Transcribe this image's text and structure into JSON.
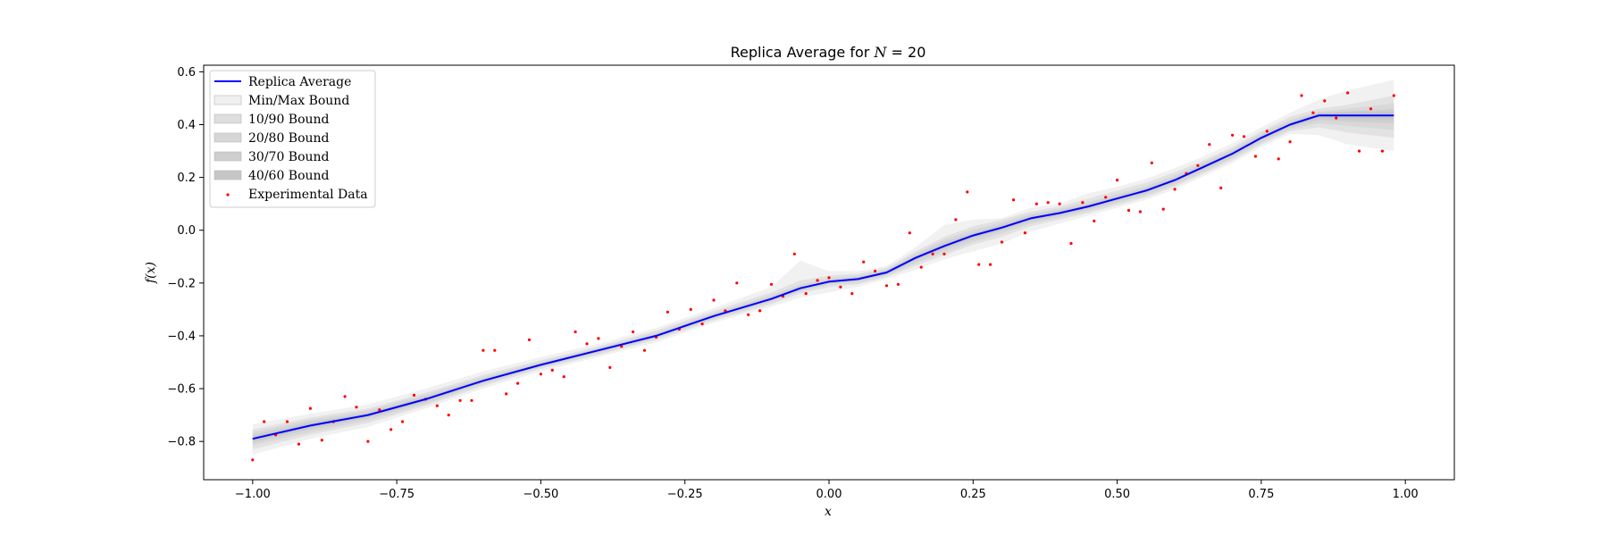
{
  "chart_data": {
    "type": "line",
    "title_prefix": "Replica Average for ",
    "title_var": "N",
    "title_suffix": " = 20",
    "xlabel": "x",
    "ylabel": "f(x)",
    "xlim": [
      -1.085,
      1.085
    ],
    "ylim": [
      -0.945,
      0.625
    ],
    "xticks": [
      -1.0,
      -0.75,
      -0.5,
      -0.25,
      0.0,
      0.25,
      0.5,
      0.75,
      1.0
    ],
    "xtick_labels": [
      "−1.00",
      "−0.75",
      "−0.50",
      "−0.25",
      "0.00",
      "0.25",
      "0.50",
      "0.75",
      "1.00"
    ],
    "yticks": [
      -0.8,
      -0.6,
      -0.4,
      -0.2,
      0.0,
      0.2,
      0.4,
      0.6
    ],
    "ytick_labels": [
      "−0.8",
      "−0.6",
      "−0.4",
      "−0.2",
      "0.0",
      "0.2",
      "0.4",
      "0.6"
    ],
    "grid": false,
    "legend_position": "upper-left",
    "legend": [
      {
        "label": "Replica Average",
        "kind": "line",
        "color": "#0000ff"
      },
      {
        "label": "Min/Max Bound",
        "kind": "band",
        "color": "#f0f0f0"
      },
      {
        "label": "10/90 Bound",
        "kind": "band",
        "color": "#dedede"
      },
      {
        "label": "20/80 Bound",
        "kind": "band",
        "color": "#d6d6d6"
      },
      {
        "label": "30/70 Bound",
        "kind": "band",
        "color": "#cecece"
      },
      {
        "label": "40/60 Bound",
        "kind": "band",
        "color": "#c6c6c6"
      },
      {
        "label": "Experimental Data",
        "kind": "points",
        "color": "#ff0000"
      }
    ],
    "series": [
      {
        "name": "Replica Average",
        "color": "#0000ff",
        "x": [
          -1.0,
          -0.9,
          -0.8,
          -0.7,
          -0.6,
          -0.5,
          -0.4,
          -0.3,
          -0.2,
          -0.1,
          -0.05,
          0.0,
          0.05,
          0.1,
          0.15,
          0.2,
          0.25,
          0.3,
          0.35,
          0.4,
          0.45,
          0.5,
          0.55,
          0.6,
          0.65,
          0.7,
          0.75,
          0.8,
          0.85,
          0.9,
          0.98
        ],
        "y": [
          -0.79,
          -0.74,
          -0.7,
          -0.64,
          -0.57,
          -0.51,
          -0.455,
          -0.4,
          -0.325,
          -0.26,
          -0.22,
          -0.195,
          -0.185,
          -0.16,
          -0.105,
          -0.06,
          -0.02,
          0.01,
          0.045,
          0.065,
          0.09,
          0.12,
          0.15,
          0.19,
          0.24,
          0.29,
          0.35,
          0.4,
          0.435,
          0.435,
          0.435
        ]
      },
      {
        "name": "Experimental Data",
        "color": "#ff0000",
        "x": [
          -1.0,
          -0.98,
          -0.96,
          -0.94,
          -0.92,
          -0.9,
          -0.88,
          -0.86,
          -0.84,
          -0.82,
          -0.8,
          -0.78,
          -0.76,
          -0.74,
          -0.72,
          -0.7,
          -0.68,
          -0.66,
          -0.64,
          -0.62,
          -0.6,
          -0.58,
          -0.56,
          -0.54,
          -0.52,
          -0.5,
          -0.48,
          -0.46,
          -0.44,
          -0.42,
          -0.4,
          -0.38,
          -0.36,
          -0.34,
          -0.32,
          -0.3,
          -0.28,
          -0.26,
          -0.24,
          -0.22,
          -0.2,
          -0.18,
          -0.16,
          -0.14,
          -0.12,
          -0.1,
          -0.08,
          -0.06,
          -0.04,
          -0.02,
          0.0,
          0.02,
          0.04,
          0.06,
          0.08,
          0.1,
          0.12,
          0.14,
          0.16,
          0.18,
          0.2,
          0.22,
          0.24,
          0.26,
          0.28,
          0.3,
          0.32,
          0.34,
          0.36,
          0.38,
          0.4,
          0.42,
          0.44,
          0.46,
          0.48,
          0.5,
          0.52,
          0.54,
          0.56,
          0.58,
          0.6,
          0.62,
          0.64,
          0.66,
          0.68,
          0.7,
          0.72,
          0.74,
          0.76,
          0.78,
          0.8,
          0.82,
          0.84,
          0.86,
          0.88,
          0.9,
          0.92,
          0.94,
          0.96,
          0.98
        ],
        "y": [
          -0.87,
          -0.725,
          -0.775,
          -0.725,
          -0.81,
          -0.675,
          -0.795,
          -0.725,
          -0.63,
          -0.67,
          -0.8,
          -0.68,
          -0.755,
          -0.725,
          -0.625,
          -0.64,
          -0.665,
          -0.7,
          -0.645,
          -0.645,
          -0.455,
          -0.455,
          -0.62,
          -0.58,
          -0.415,
          -0.545,
          -0.53,
          -0.555,
          -0.385,
          -0.43,
          -0.41,
          -0.52,
          -0.44,
          -0.385,
          -0.455,
          -0.405,
          -0.31,
          -0.375,
          -0.3,
          -0.355,
          -0.265,
          -0.305,
          -0.2,
          -0.32,
          -0.305,
          -0.205,
          -0.25,
          -0.09,
          -0.24,
          -0.19,
          -0.18,
          -0.215,
          -0.24,
          -0.12,
          -0.155,
          -0.21,
          -0.205,
          -0.01,
          -0.14,
          -0.09,
          -0.09,
          0.04,
          0.145,
          -0.13,
          -0.13,
          -0.045,
          0.115,
          -0.01,
          0.1,
          0.105,
          0.1,
          -0.05,
          0.105,
          0.035,
          0.125,
          0.19,
          0.075,
          0.07,
          0.255,
          0.08,
          0.155,
          0.215,
          0.245,
          0.325,
          0.16,
          0.36,
          0.355,
          0.28,
          0.375,
          0.27,
          0.335,
          0.51,
          0.445,
          0.49,
          0.425,
          0.52,
          0.3,
          0.46,
          0.3,
          0.51
        ]
      }
    ],
    "bands": [
      {
        "name": "Min/Max Bound",
        "color": "#eeeeee",
        "opacity": 0.85,
        "x": [
          -1.0,
          -0.9,
          -0.8,
          -0.7,
          -0.6,
          -0.5,
          -0.4,
          -0.3,
          -0.2,
          -0.1,
          -0.05,
          0.0,
          0.05,
          0.1,
          0.15,
          0.2,
          0.25,
          0.3,
          0.35,
          0.4,
          0.45,
          0.5,
          0.55,
          0.6,
          0.65,
          0.7,
          0.75,
          0.8,
          0.85,
          0.9,
          0.98
        ],
        "lower": [
          -0.85,
          -0.79,
          -0.745,
          -0.675,
          -0.6,
          -0.535,
          -0.48,
          -0.425,
          -0.35,
          -0.29,
          -0.255,
          -0.235,
          -0.215,
          -0.185,
          -0.15,
          -0.11,
          -0.08,
          -0.05,
          -0.005,
          0.025,
          0.055,
          0.085,
          0.115,
          0.155,
          0.205,
          0.255,
          0.315,
          0.365,
          0.36,
          0.325,
          0.3
        ],
        "upper": [
          -0.735,
          -0.695,
          -0.66,
          -0.6,
          -0.535,
          -0.48,
          -0.43,
          -0.37,
          -0.295,
          -0.215,
          -0.115,
          -0.155,
          -0.155,
          -0.135,
          -0.065,
          0.02,
          0.04,
          0.045,
          0.085,
          0.1,
          0.14,
          0.165,
          0.195,
          0.235,
          0.28,
          0.33,
          0.39,
          0.445,
          0.495,
          0.53,
          0.57
        ]
      },
      {
        "name": "10/90 Bound",
        "color": "#dcdcdc",
        "opacity": 0.75,
        "x": [
          -1.0,
          -0.9,
          -0.8,
          -0.7,
          -0.6,
          -0.5,
          -0.4,
          -0.3,
          -0.2,
          -0.1,
          -0.05,
          0.0,
          0.05,
          0.1,
          0.15,
          0.2,
          0.25,
          0.3,
          0.35,
          0.4,
          0.45,
          0.5,
          0.55,
          0.6,
          0.65,
          0.7,
          0.75,
          0.8,
          0.85,
          0.9,
          0.98
        ],
        "lower": [
          -0.83,
          -0.775,
          -0.73,
          -0.665,
          -0.59,
          -0.525,
          -0.472,
          -0.415,
          -0.342,
          -0.28,
          -0.24,
          -0.215,
          -0.205,
          -0.178,
          -0.135,
          -0.095,
          -0.055,
          -0.025,
          0.015,
          0.04,
          0.065,
          0.095,
          0.125,
          0.165,
          0.215,
          0.265,
          0.325,
          0.375,
          0.39,
          0.37,
          0.35
        ],
        "upper": [
          -0.755,
          -0.71,
          -0.675,
          -0.615,
          -0.548,
          -0.492,
          -0.44,
          -0.38,
          -0.305,
          -0.235,
          -0.19,
          -0.172,
          -0.165,
          -0.142,
          -0.08,
          -0.025,
          0.015,
          0.04,
          0.07,
          0.09,
          0.12,
          0.15,
          0.18,
          0.22,
          0.265,
          0.315,
          0.375,
          0.43,
          0.46,
          0.475,
          0.51
        ]
      },
      {
        "name": "20/80 Bound",
        "color": "#d4d4d4",
        "opacity": 0.75,
        "x": [
          -1.0,
          -0.9,
          -0.8,
          -0.7,
          -0.6,
          -0.5,
          -0.4,
          -0.3,
          -0.2,
          -0.1,
          -0.05,
          0.0,
          0.05,
          0.1,
          0.15,
          0.2,
          0.25,
          0.3,
          0.35,
          0.4,
          0.45,
          0.5,
          0.55,
          0.6,
          0.65,
          0.7,
          0.75,
          0.8,
          0.85,
          0.9,
          0.98
        ],
        "lower": [
          -0.815,
          -0.765,
          -0.72,
          -0.658,
          -0.582,
          -0.52,
          -0.466,
          -0.41,
          -0.336,
          -0.272,
          -0.232,
          -0.206,
          -0.198,
          -0.172,
          -0.125,
          -0.085,
          -0.045,
          -0.012,
          0.025,
          0.048,
          0.073,
          0.103,
          0.133,
          0.172,
          0.222,
          0.273,
          0.333,
          0.383,
          0.405,
          0.395,
          0.38
        ],
        "upper": [
          -0.765,
          -0.718,
          -0.682,
          -0.622,
          -0.556,
          -0.498,
          -0.445,
          -0.388,
          -0.313,
          -0.245,
          -0.205,
          -0.182,
          -0.173,
          -0.148,
          -0.088,
          -0.035,
          0.002,
          0.03,
          0.062,
          0.082,
          0.107,
          0.137,
          0.167,
          0.208,
          0.258,
          0.307,
          0.367,
          0.418,
          0.45,
          0.46,
          0.48
        ]
      },
      {
        "name": "30/70 Bound",
        "color": "#cccccc",
        "opacity": 0.75,
        "x": [
          -1.0,
          -0.9,
          -0.8,
          -0.7,
          -0.6,
          -0.5,
          -0.4,
          -0.3,
          -0.2,
          -0.1,
          -0.05,
          0.0,
          0.05,
          0.1,
          0.15,
          0.2,
          0.25,
          0.3,
          0.35,
          0.4,
          0.45,
          0.5,
          0.55,
          0.6,
          0.65,
          0.7,
          0.75,
          0.8,
          0.85,
          0.9,
          0.98
        ],
        "lower": [
          -0.805,
          -0.755,
          -0.712,
          -0.652,
          -0.578,
          -0.516,
          -0.462,
          -0.406,
          -0.332,
          -0.267,
          -0.228,
          -0.202,
          -0.193,
          -0.168,
          -0.117,
          -0.074,
          -0.034,
          -0.002,
          0.033,
          0.055,
          0.08,
          0.11,
          0.14,
          0.18,
          0.23,
          0.28,
          0.34,
          0.39,
          0.418,
          0.41,
          0.405
        ],
        "upper": [
          -0.775,
          -0.726,
          -0.69,
          -0.63,
          -0.562,
          -0.504,
          -0.449,
          -0.394,
          -0.318,
          -0.252,
          -0.212,
          -0.188,
          -0.178,
          -0.152,
          -0.095,
          -0.045,
          -0.008,
          0.022,
          0.056,
          0.076,
          0.1,
          0.13,
          0.16,
          0.2,
          0.25,
          0.3,
          0.36,
          0.41,
          0.445,
          0.45,
          0.46
        ]
      },
      {
        "name": "40/60 Bound",
        "color": "#c4c4c4",
        "opacity": 0.75,
        "x": [
          -1.0,
          -0.9,
          -0.8,
          -0.7,
          -0.6,
          -0.5,
          -0.4,
          -0.3,
          -0.2,
          -0.1,
          -0.05,
          0.0,
          0.05,
          0.1,
          0.15,
          0.2,
          0.25,
          0.3,
          0.35,
          0.4,
          0.45,
          0.5,
          0.55,
          0.6,
          0.65,
          0.7,
          0.75,
          0.8,
          0.85,
          0.9,
          0.98
        ],
        "lower": [
          -0.798,
          -0.748,
          -0.706,
          -0.646,
          -0.574,
          -0.513,
          -0.459,
          -0.403,
          -0.329,
          -0.264,
          -0.224,
          -0.199,
          -0.19,
          -0.165,
          -0.111,
          -0.067,
          -0.027,
          0.004,
          0.039,
          0.06,
          0.085,
          0.115,
          0.145,
          0.185,
          0.235,
          0.285,
          0.345,
          0.395,
          0.427,
          0.423,
          0.42
        ],
        "upper": [
          -0.782,
          -0.732,
          -0.694,
          -0.634,
          -0.566,
          -0.507,
          -0.451,
          -0.397,
          -0.321,
          -0.256,
          -0.216,
          -0.191,
          -0.181,
          -0.155,
          -0.099,
          -0.053,
          -0.013,
          0.016,
          0.051,
          0.07,
          0.095,
          0.125,
          0.155,
          0.195,
          0.245,
          0.295,
          0.355,
          0.405,
          0.443,
          0.447,
          0.45
        ]
      }
    ]
  }
}
